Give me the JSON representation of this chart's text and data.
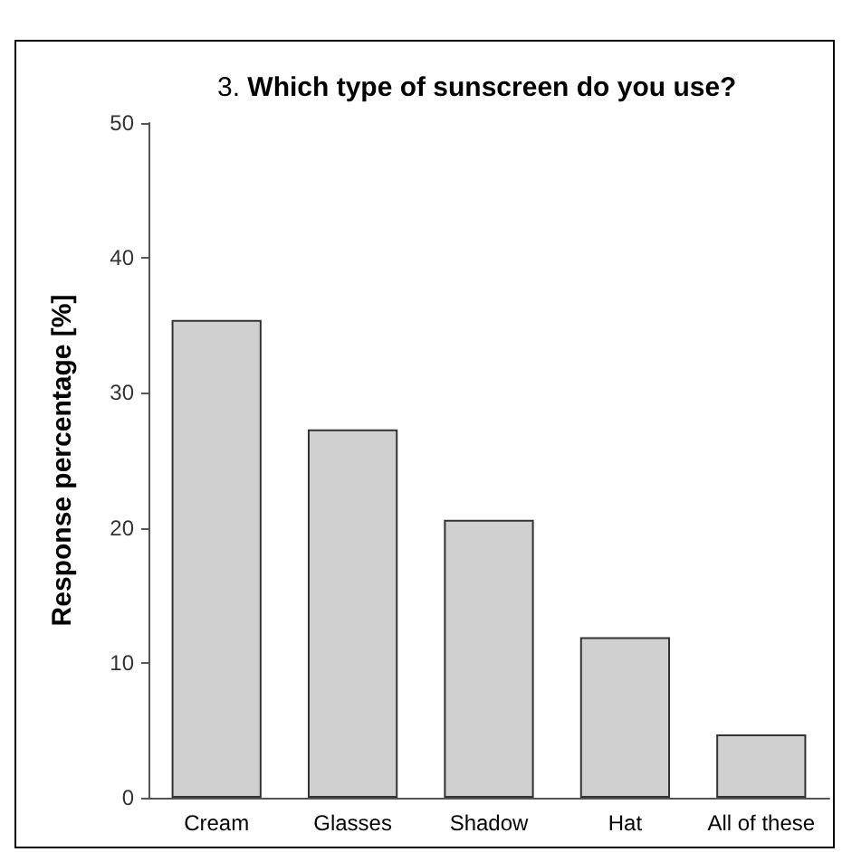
{
  "chart_data": {
    "type": "bar",
    "title": "3. Which type of sunscreen do you use?",
    "ylabel": "Response percentage [%]",
    "categories": [
      "Cream",
      "Glasses",
      "Shadow",
      "Hat",
      "All of these"
    ],
    "values": [
      35.4,
      27.3,
      20.6,
      11.9,
      4.7
    ],
    "color": "#d0d0d0",
    "ylim": [
      0,
      50
    ],
    "yticks": [
      0,
      10,
      20,
      30,
      40,
      50
    ],
    "grid": false
  }
}
